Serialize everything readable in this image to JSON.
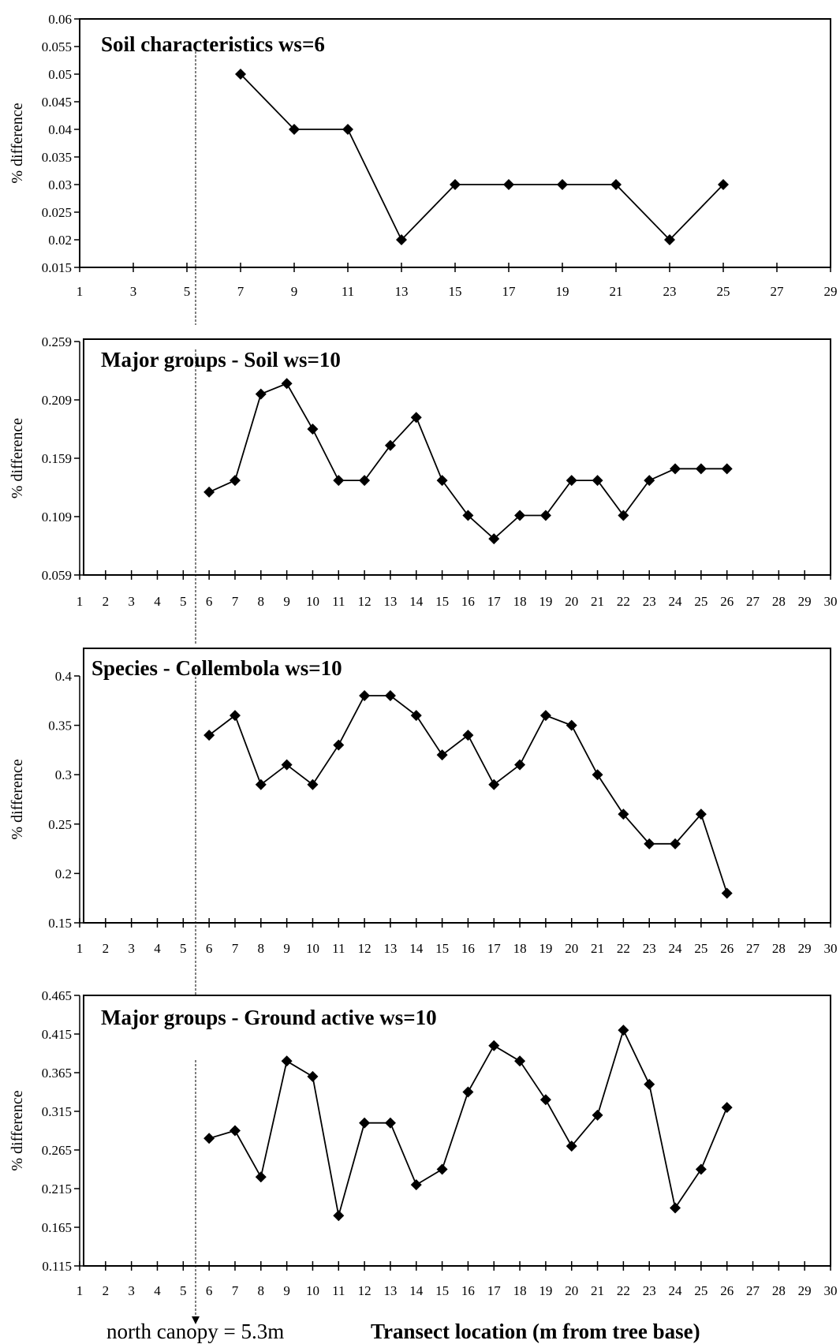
{
  "chart_data": [
    {
      "type": "line",
      "title": "Soil characteristics  ws=6",
      "ylabel": "% difference",
      "ylim": [
        0.015,
        0.06
      ],
      "y_ticks": [
        "0.015",
        "0.02",
        "0.025",
        "0.03",
        "0.035",
        "0.04",
        "0.045",
        "0.05",
        "0.055",
        "0.06"
      ],
      "xlim": [
        1,
        29
      ],
      "x_ticks": [
        "1",
        "3",
        "5",
        "7",
        "9",
        "11",
        "13",
        "15",
        "17",
        "19",
        "21",
        "23",
        "25",
        "27",
        "29"
      ],
      "series": [
        {
          "x": [
            7,
            9,
            11,
            13,
            15,
            17,
            19,
            21,
            23,
            25
          ],
          "y": [
            0.05,
            0.04,
            0.04,
            0.02,
            0.03,
            0.03,
            0.03,
            0.03,
            0.02,
            0.03
          ]
        }
      ]
    },
    {
      "type": "line",
      "title": "Major groups - Soil  ws=10",
      "ylabel": "% difference",
      "ylim": [
        0.059,
        0.259
      ],
      "y_ticks": [
        "0.059",
        "0.109",
        "0.159",
        "0.209",
        "0.259"
      ],
      "xlim": [
        1,
        30
      ],
      "x_ticks": [
        "1",
        "2",
        "3",
        "4",
        "5",
        "6",
        "7",
        "8",
        "9",
        "10",
        "11",
        "12",
        "13",
        "14",
        "15",
        "16",
        "17",
        "18",
        "19",
        "20",
        "21",
        "22",
        "23",
        "24",
        "25",
        "26",
        "27",
        "28",
        "29",
        "30"
      ],
      "series": [
        {
          "x": [
            6,
            7,
            8,
            9,
            10,
            11,
            12,
            13,
            14,
            15,
            16,
            17,
            18,
            19,
            20,
            21,
            22,
            23,
            24,
            25,
            26
          ],
          "y": [
            0.13,
            0.14,
            0.214,
            0.223,
            0.184,
            0.14,
            0.14,
            0.17,
            0.194,
            0.14,
            0.11,
            0.09,
            0.11,
            0.11,
            0.14,
            0.14,
            0.11,
            0.14,
            0.15,
            0.15,
            0.15
          ]
        }
      ]
    },
    {
      "type": "line",
      "title": "Species - Collembola  ws=10",
      "ylabel": "% difference",
      "ylim": [
        0.15,
        0.4
      ],
      "y_ticks": [
        "0.15",
        "0.2",
        "0.25",
        "0.3",
        "0.35",
        "0.4"
      ],
      "xlim": [
        1,
        30
      ],
      "x_ticks": [
        "1",
        "2",
        "3",
        "4",
        "5",
        "6",
        "7",
        "8",
        "9",
        "10",
        "11",
        "12",
        "13",
        "14",
        "15",
        "16",
        "17",
        "18",
        "19",
        "20",
        "21",
        "22",
        "23",
        "24",
        "25",
        "26",
        "27",
        "28",
        "29",
        "30"
      ],
      "series": [
        {
          "x": [
            6,
            7,
            8,
            9,
            10,
            11,
            12,
            13,
            14,
            15,
            16,
            17,
            18,
            19,
            20,
            21,
            22,
            23,
            24,
            25,
            26
          ],
          "y": [
            0.34,
            0.36,
            0.29,
            0.31,
            0.29,
            0.33,
            0.38,
            0.38,
            0.36,
            0.32,
            0.34,
            0.29,
            0.31,
            0.36,
            0.35,
            0.3,
            0.26,
            0.23,
            0.23,
            0.26,
            0.18
          ]
        }
      ]
    },
    {
      "type": "line",
      "title": "Major groups - Ground active ws=10",
      "ylabel": "% difference",
      "ylim": [
        0.115,
        0.465
      ],
      "y_ticks": [
        "0.115",
        "0.165",
        "0.215",
        "0.265",
        "0.315",
        "0.365",
        "0.415",
        "0.465"
      ],
      "xlim": [
        1,
        30
      ],
      "x_ticks": [
        "1",
        "2",
        "3",
        "4",
        "5",
        "6",
        "7",
        "8",
        "9",
        "10",
        "11",
        "12",
        "13",
        "14",
        "15",
        "16",
        "17",
        "18",
        "19",
        "20",
        "21",
        "22",
        "23",
        "24",
        "25",
        "26",
        "27",
        "28",
        "29",
        "30"
      ],
      "series": [
        {
          "x": [
            6,
            7,
            8,
            9,
            10,
            11,
            12,
            13,
            14,
            15,
            16,
            17,
            18,
            19,
            20,
            21,
            22,
            23,
            24,
            25,
            26
          ],
          "y": [
            0.28,
            0.29,
            0.23,
            0.38,
            0.36,
            0.18,
            0.3,
            0.3,
            0.22,
            0.24,
            0.34,
            0.4,
            0.38,
            0.33,
            0.27,
            0.31,
            0.42,
            0.35,
            0.19,
            0.24,
            0.32
          ]
        }
      ]
    }
  ],
  "footer": {
    "canopy_note": "north canopy = 5.3m",
    "x_axis_label": "Transect location (m from tree base)"
  }
}
